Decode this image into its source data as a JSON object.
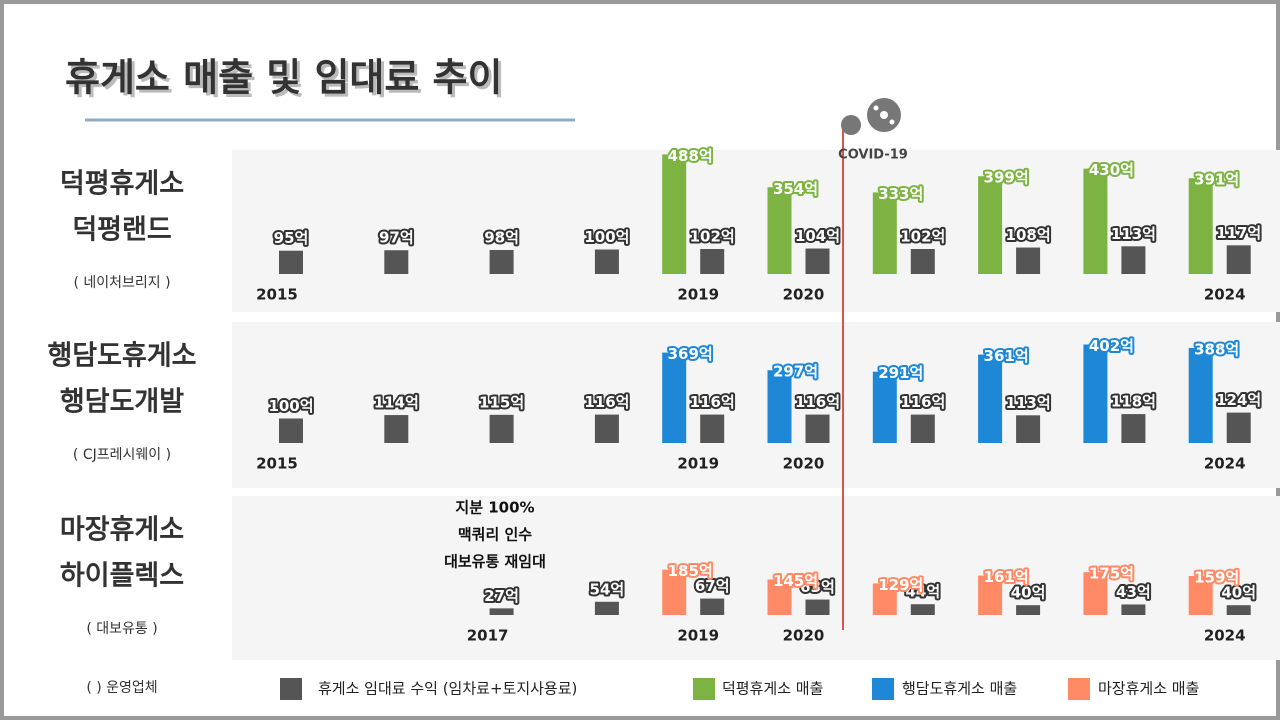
{
  "title": "휴게소 매출 및 임대료 추이",
  "covid_label": "COVID-19",
  "footnote": "( ) 운영업체",
  "chart_data": [
    {
      "type": "bar",
      "name_lines": [
        "덕평휴게소",
        "덕평랜드"
      ],
      "operator": "( 네이처브리지 )",
      "categories": [
        "2015",
        null,
        null,
        null,
        "2019",
        "2020",
        null,
        null,
        null,
        "2024"
      ],
      "series": [
        {
          "name": "휴게소 임대료 수익 (임차료+토지사용료)",
          "color": "#555555",
          "values": [
            95,
            97,
            98,
            100,
            102,
            104,
            102,
            108,
            113,
            117
          ],
          "value_labels": [
            "95억",
            "97억",
            "98억",
            "100억",
            "102억",
            "104억",
            "102억",
            "108억",
            "113억",
            "117억"
          ]
        },
        {
          "name": "덕평휴게소 매출",
          "color": "#7cb342",
          "values": [
            null,
            null,
            null,
            null,
            488,
            354,
            333,
            399,
            430,
            391
          ],
          "value_labels": [
            null,
            null,
            null,
            null,
            "488억",
            "354억",
            "333억",
            "399억",
            "430억",
            "391억"
          ]
        }
      ]
    },
    {
      "type": "bar",
      "name_lines": [
        "행담도휴게소",
        "행담도개발"
      ],
      "operator": "( CJ프레시웨이 )",
      "categories": [
        "2015",
        null,
        null,
        null,
        "2019",
        "2020",
        null,
        null,
        null,
        "2024"
      ],
      "series": [
        {
          "color": "#555555",
          "values": [
            100,
            114,
            115,
            116,
            116,
            116,
            116,
            113,
            118,
            124
          ],
          "value_labels": [
            "100억",
            "114억",
            "115억",
            "116억",
            "116억",
            "116억",
            "116억",
            "113억",
            "118억",
            "124억"
          ]
        },
        {
          "name": "행담도휴게소 매출",
          "color": "#1e88d6",
          "values": [
            null,
            null,
            null,
            null,
            369,
            297,
            291,
            361,
            402,
            388
          ],
          "value_labels": [
            null,
            null,
            null,
            null,
            "369억",
            "297억",
            "291억",
            "361억",
            "402억",
            "388억"
          ]
        }
      ]
    },
    {
      "type": "bar",
      "name_lines": [
        "마장휴게소",
        "하이플렉스"
      ],
      "operator": "( 대보유통 )",
      "annotation": [
        "지분 100%",
        "맥쿼리 인수",
        "대보유통 재임대"
      ],
      "categories": [
        null,
        null,
        "2017",
        null,
        "2019",
        "2020",
        null,
        null,
        null,
        "2024"
      ],
      "series": [
        {
          "color": "#555555",
          "values": [
            null,
            null,
            27,
            54,
            67,
            63,
            44,
            40,
            43,
            40
          ],
          "value_labels": [
            null,
            null,
            "27억",
            "54억",
            "67억",
            "63억",
            "44억",
            "40억",
            "43억",
            "40억"
          ]
        },
        {
          "name": "마장휴게소 매출",
          "color": "#ff8a65",
          "values": [
            null,
            null,
            null,
            null,
            185,
            145,
            129,
            161,
            175,
            159
          ],
          "value_labels": [
            null,
            null,
            null,
            null,
            "185억",
            "145억",
            "129억",
            "161억",
            "175억",
            "159억"
          ]
        }
      ]
    }
  ]
}
